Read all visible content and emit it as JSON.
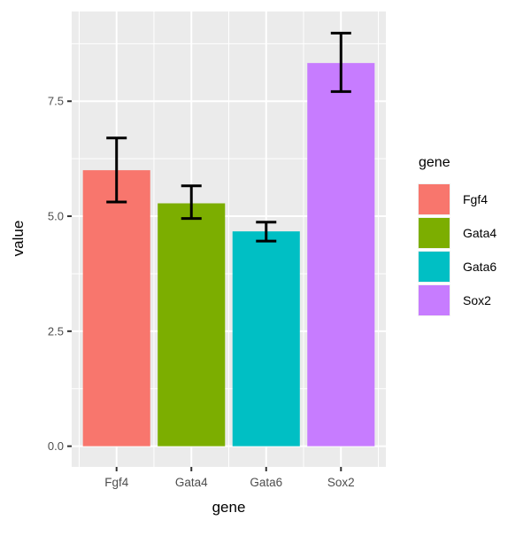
{
  "chart_data": {
    "type": "bar",
    "categories": [
      "Fgf4",
      "Gata4",
      "Gata6",
      "Sox2"
    ],
    "values": [
      6.0,
      5.28,
      4.67,
      8.33
    ],
    "error_low": [
      5.31,
      4.95,
      4.46,
      7.71
    ],
    "error_high": [
      6.7,
      5.66,
      4.87,
      8.98
    ],
    "bar_colors": [
      "#F8766D",
      "#7CAE00",
      "#00BFC4",
      "#C77CFF"
    ],
    "xlabel": "gene",
    "ylabel": "value",
    "ylim": [
      -0.45,
      9.45
    ],
    "y_ticks": [
      0,
      2.5,
      5,
      7.5
    ],
    "y_tick_labels": [
      "0.0",
      "2.5",
      "5.0",
      "7.5"
    ],
    "y_minor_ticks": [
      1.25,
      3.75,
      6.25,
      8.75
    ],
    "grid": true,
    "legend": {
      "title": "gene",
      "position": "right",
      "entries": [
        {
          "label": "Fgf4",
          "color": "#F8766D"
        },
        {
          "label": "Gata4",
          "color": "#7CAE00"
        },
        {
          "label": "Gata6",
          "color": "#00BFC4"
        },
        {
          "label": "Sox2",
          "color": "#C77CFF"
        }
      ]
    }
  },
  "theme": {
    "background": "#FFFFFF",
    "panel_background": "#EBEBEB",
    "grid_color": "#FFFFFF",
    "axis_text_color": "#4D4D4D",
    "axis_title_color": "#000000",
    "tick_color": "#333333",
    "errorbar_color": "#000000"
  }
}
